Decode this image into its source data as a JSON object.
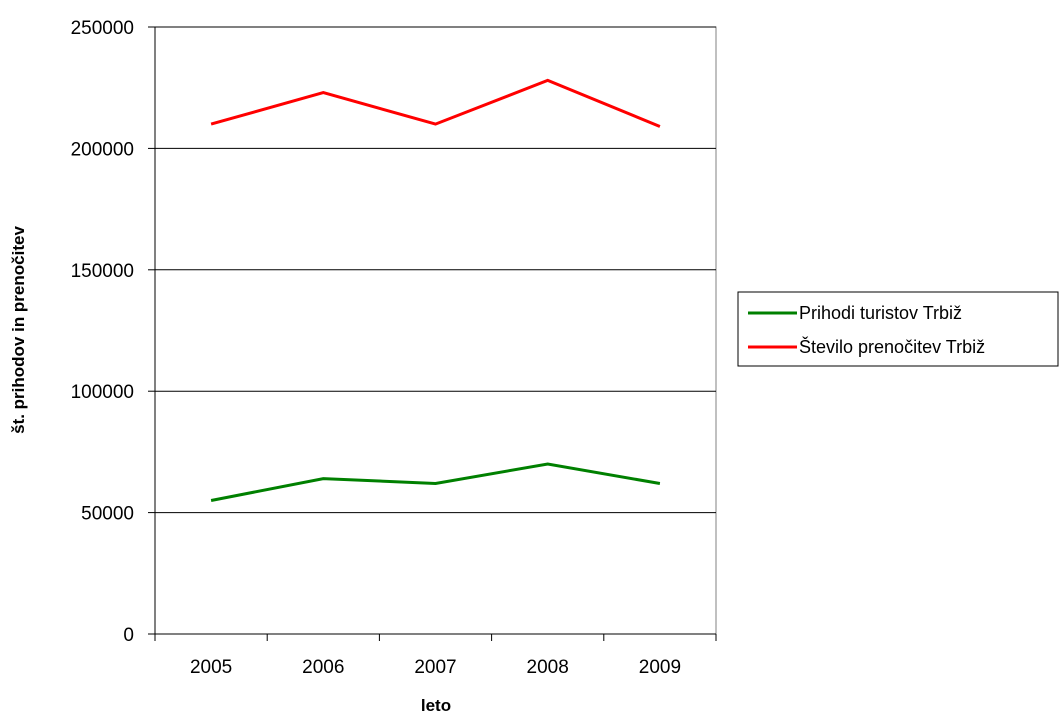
{
  "chart_data": {
    "type": "line",
    "title": "",
    "xlabel": "leto",
    "ylabel": "št. prihodov in prenočitev",
    "categories": [
      "2005",
      "2006",
      "2007",
      "2008",
      "2009"
    ],
    "ylim": [
      0,
      250000
    ],
    "y_ticks": [
      "0",
      "50000",
      "100000",
      "150000",
      "200000",
      "250000"
    ],
    "grid": true,
    "legend_position": "right",
    "series": [
      {
        "name": "Prihodi turistov Trbiž",
        "values": [
          55000,
          64000,
          62000,
          70000,
          62000
        ],
        "color": "#008000"
      },
      {
        "name": "Število prenočitev Trbiž",
        "values": [
          210000,
          223000,
          210000,
          228000,
          209000
        ],
        "color": "#ff0000"
      }
    ]
  }
}
